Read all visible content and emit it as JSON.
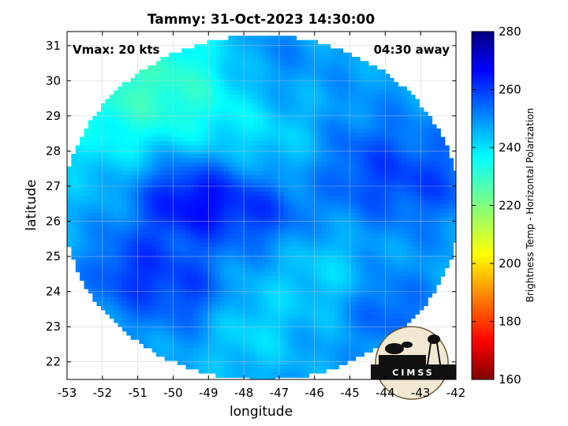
{
  "chart_data": {
    "type": "heatmap",
    "title": "Tammy: 31-Oct-2023 14:30:00",
    "xlabel": "longitude",
    "ylabel": "latitude",
    "xlim": [
      -53,
      -42
    ],
    "ylim": [
      21.5,
      31.4
    ],
    "x_ticks": [
      -53,
      -52,
      -51,
      -50,
      -49,
      -48,
      -47,
      -46,
      -45,
      -44,
      -43,
      -42
    ],
    "y_ticks": [
      22,
      23,
      24,
      25,
      26,
      27,
      28,
      29,
      30,
      31
    ],
    "grid": true,
    "annotations": {
      "left": "Vmax: 20 kts",
      "right": "04:30 away"
    },
    "colorbar": {
      "label": "Brightness Temp - Horizontal Polarization",
      "min": 160,
      "max": 280,
      "ticks": [
        160,
        180,
        200,
        220,
        240,
        260,
        280
      ],
      "colormap": "jet"
    },
    "swath": {
      "center": [
        -47.55,
        26.45
      ],
      "lon_radius": 5.6,
      "lat_radius": 4.9
    },
    "field": {
      "base": 248,
      "features": [
        {
          "lon": -51.5,
          "lat": 30.0,
          "amp": -16,
          "r": 2.6
        },
        {
          "lon": -49.0,
          "lat": 29.6,
          "amp": -8,
          "r": 2.0
        },
        {
          "lon": -47.0,
          "lat": 28.3,
          "amp": -4,
          "r": 1.4
        },
        {
          "lon": -50.0,
          "lat": 26.8,
          "amp": 16,
          "r": 1.3
        },
        {
          "lon": -48.6,
          "lat": 26.6,
          "amp": 12,
          "r": 1.2
        },
        {
          "lon": -47.2,
          "lat": 26.3,
          "amp": 8,
          "r": 1.0
        },
        {
          "lon": -51.2,
          "lat": 24.6,
          "amp": 12,
          "r": 1.2
        },
        {
          "lon": -49.5,
          "lat": 24.0,
          "amp": 10,
          "r": 1.1
        },
        {
          "lon": -44.5,
          "lat": 27.5,
          "amp": 10,
          "r": 1.5
        },
        {
          "lon": -42.6,
          "lat": 27.2,
          "amp": 8,
          "r": 1.2
        },
        {
          "lon": -47.5,
          "lat": 30.5,
          "amp": 6,
          "r": 1.3
        },
        {
          "lon": -45.8,
          "lat": 24.6,
          "amp": -6,
          "r": 1.3
        },
        {
          "lon": -48.0,
          "lat": 23.0,
          "amp": -7,
          "r": 1.4
        },
        {
          "lon": -44.0,
          "lat": 23.5,
          "amp": 8,
          "r": 1.1
        }
      ]
    }
  },
  "logo": {
    "text": "CIMSS"
  }
}
